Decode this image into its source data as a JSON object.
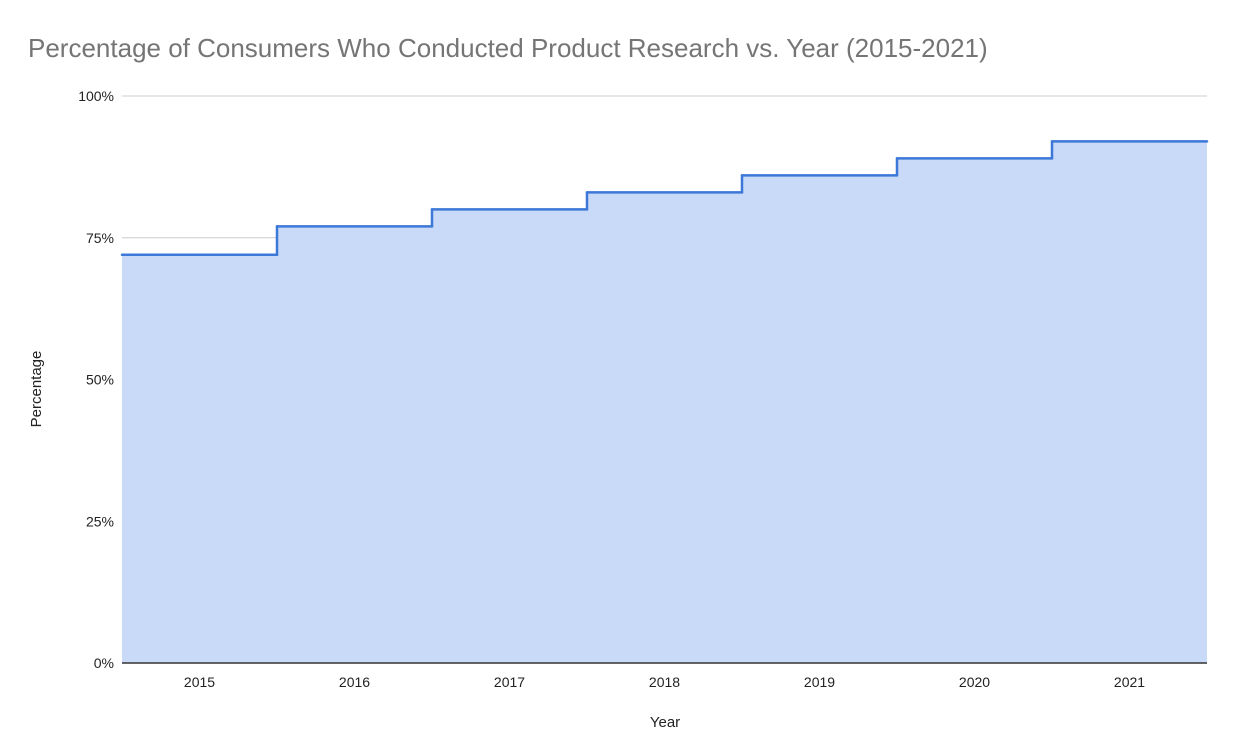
{
  "chart_data": {
    "type": "area",
    "style": "stepped",
    "title": "Percentage of Consumers Who Conducted Product Research vs. Year (2015-2021)",
    "xlabel": "Year",
    "ylabel": "Percentage",
    "categories": [
      "2015",
      "2016",
      "2017",
      "2018",
      "2019",
      "2020",
      "2021"
    ],
    "series": [
      {
        "values": [
          72,
          77,
          80,
          83,
          86,
          89,
          92
        ]
      }
    ],
    "ylim": [
      0,
      100
    ],
    "yticks": [
      0,
      25,
      50,
      75,
      100
    ],
    "ytick_labels": [
      "0%",
      "25%",
      "50%",
      "75%",
      "100%"
    ],
    "grid": true,
    "legend": "none",
    "colors": {
      "line": "#3c78d8",
      "fill": "#c9daf8",
      "grid": "#cccccc",
      "title": "#757575",
      "text": "#222222"
    }
  }
}
